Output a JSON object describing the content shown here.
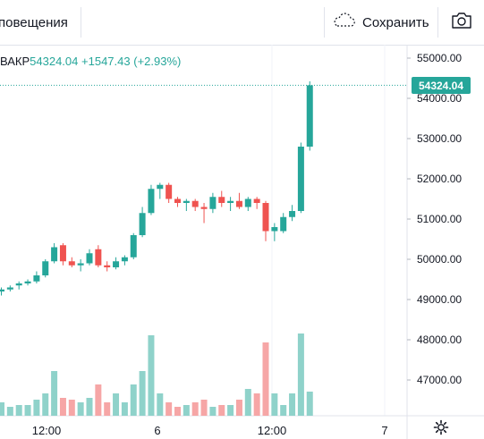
{
  "toolbar": {
    "alerts_label": "повещения",
    "save_label": "Сохранить"
  },
  "icons": {
    "cloud": "cloud-icon",
    "camera": "camera-icon",
    "settings": "gear-icon"
  },
  "legend": {
    "symbol_suffix": "ВАКР",
    "last": "54324.04",
    "change": "+1547.43",
    "change_pct": "(+2.93%)"
  },
  "price_tag": "54324.04",
  "colors": {
    "up": "#26a69a",
    "down": "#ef5350",
    "vol_up": "#8fd2ca",
    "vol_down": "#f6a6a6"
  },
  "chart_data": {
    "type": "candlestick",
    "y_ticks": [
      "55000.00",
      "54000.00",
      "53000.00",
      "52000.00",
      "51000.00",
      "50000.00",
      "49000.00",
      "48000.00",
      "47000.00"
    ],
    "x_ticks": [
      "12:00",
      "6",
      "12:00",
      "7"
    ],
    "ylim": [
      46200,
      55500
    ],
    "last_price": 54324.04,
    "candles": [
      {
        "o": 49200,
        "h": 49300,
        "l": 49100,
        "c": 49250
      },
      {
        "o": 49250,
        "h": 49350,
        "l": 49200,
        "c": 49300
      },
      {
        "o": 49350,
        "h": 49450,
        "l": 49250,
        "c": 49400
      },
      {
        "o": 49400,
        "h": 49500,
        "l": 49350,
        "c": 49450
      },
      {
        "o": 49450,
        "h": 49700,
        "l": 49400,
        "c": 49600
      },
      {
        "o": 49600,
        "h": 50000,
        "l": 49550,
        "c": 49950
      },
      {
        "o": 49950,
        "h": 50400,
        "l": 49900,
        "c": 50300
      },
      {
        "o": 50350,
        "h": 50400,
        "l": 49850,
        "c": 49950
      },
      {
        "o": 49950,
        "h": 50050,
        "l": 49800,
        "c": 49850
      },
      {
        "o": 49850,
        "h": 50000,
        "l": 49700,
        "c": 49900
      },
      {
        "o": 49900,
        "h": 50250,
        "l": 49850,
        "c": 50150
      },
      {
        "o": 50250,
        "h": 50350,
        "l": 49800,
        "c": 49850
      },
      {
        "o": 49850,
        "h": 49950,
        "l": 49700,
        "c": 49800
      },
      {
        "o": 49800,
        "h": 50050,
        "l": 49750,
        "c": 49950
      },
      {
        "o": 49950,
        "h": 50100,
        "l": 49850,
        "c": 50050
      },
      {
        "o": 50050,
        "h": 50650,
        "l": 50000,
        "c": 50600
      },
      {
        "o": 50600,
        "h": 51300,
        "l": 50550,
        "c": 51150
      },
      {
        "o": 51150,
        "h": 51850,
        "l": 51100,
        "c": 51750
      },
      {
        "o": 51750,
        "h": 51900,
        "l": 51500,
        "c": 51850
      },
      {
        "o": 51850,
        "h": 51900,
        "l": 51400,
        "c": 51500
      },
      {
        "o": 51500,
        "h": 51550,
        "l": 51300,
        "c": 51400
      },
      {
        "o": 51400,
        "h": 51500,
        "l": 51200,
        "c": 51450
      },
      {
        "o": 51450,
        "h": 51500,
        "l": 51200,
        "c": 51300
      },
      {
        "o": 51300,
        "h": 51400,
        "l": 50900,
        "c": 51250
      },
      {
        "o": 51250,
        "h": 51650,
        "l": 51150,
        "c": 51550
      },
      {
        "o": 51550,
        "h": 51700,
        "l": 51300,
        "c": 51400
      },
      {
        "o": 51400,
        "h": 51550,
        "l": 51200,
        "c": 51450
      },
      {
        "o": 51450,
        "h": 51650,
        "l": 51250,
        "c": 51300
      },
      {
        "o": 51300,
        "h": 51550,
        "l": 51200,
        "c": 51500
      },
      {
        "o": 51500,
        "h": 51550,
        "l": 51250,
        "c": 51400
      },
      {
        "o": 51400,
        "h": 51450,
        "l": 50450,
        "c": 50700
      },
      {
        "o": 50700,
        "h": 50900,
        "l": 50450,
        "c": 50800
      },
      {
        "o": 50700,
        "h": 51150,
        "l": 50650,
        "c": 51050
      },
      {
        "o": 51050,
        "h": 51350,
        "l": 50950,
        "c": 51200
      },
      {
        "o": 51200,
        "h": 52900,
        "l": 51150,
        "c": 52800
      },
      {
        "o": 52800,
        "h": 54424,
        "l": 52700,
        "c": 54324
      }
    ],
    "volumes": [
      0.15,
      0.1,
      0.12,
      0.12,
      0.18,
      0.25,
      0.5,
      0.2,
      0.18,
      0.15,
      0.2,
      0.35,
      0.15,
      0.25,
      0.15,
      0.35,
      0.5,
      0.9,
      0.25,
      0.15,
      0.1,
      0.12,
      0.15,
      0.18,
      0.1,
      0.12,
      0.12,
      0.18,
      0.3,
      0.25,
      0.82,
      0.25,
      0.12,
      0.25,
      0.92,
      0.27
    ]
  }
}
